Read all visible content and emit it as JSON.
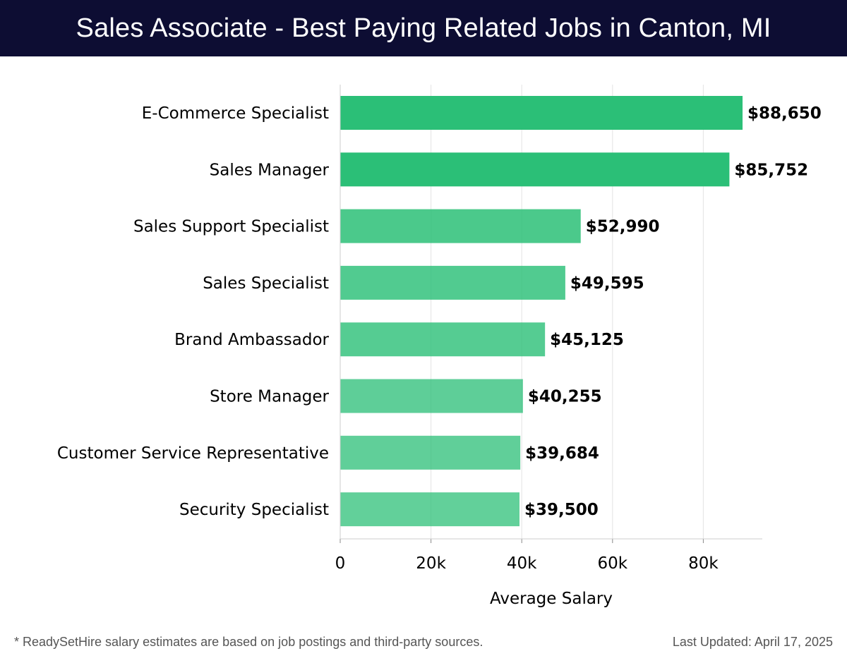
{
  "header": {
    "title": "Sales Associate - Best Paying Related Jobs in Canton, MI"
  },
  "chart_data": {
    "type": "bar",
    "orientation": "horizontal",
    "title": "Sales Associate - Best Paying Related Jobs in Canton, MI",
    "xlabel": "Average Salary",
    "ylabel": "",
    "xlim": [
      0,
      93000
    ],
    "xticks": [
      0,
      20000,
      40000,
      60000,
      80000
    ],
    "xtick_labels": [
      "0",
      "20k",
      "40k",
      "60k",
      "80k"
    ],
    "categories": [
      "E-Commerce Specialist",
      "Sales Manager",
      "Sales Support Specialist",
      "Sales Specialist",
      "Brand Ambassador",
      "Store Manager",
      "Customer Service Representative",
      "Security Specialist"
    ],
    "values": [
      88650,
      85752,
      52990,
      49595,
      45125,
      40255,
      39684,
      39500
    ],
    "value_labels": [
      "$88,650",
      "$85,752",
      "$52,990",
      "$49,595",
      "$45,125",
      "$40,255",
      "$39,684",
      "$39,500"
    ],
    "bar_alpha": [
      1.0,
      1.0,
      0.85,
      0.82,
      0.8,
      0.76,
      0.75,
      0.74
    ],
    "grid": true,
    "colors": {
      "bar": "#2bbf77",
      "grid": "#e3e3e3",
      "axis": "#cccccc",
      "text": "#000000"
    }
  },
  "footer": {
    "note": "* ReadySetHire salary estimates are based on job postings and third-party sources.",
    "updated": "Last Updated: April 17, 2025"
  }
}
